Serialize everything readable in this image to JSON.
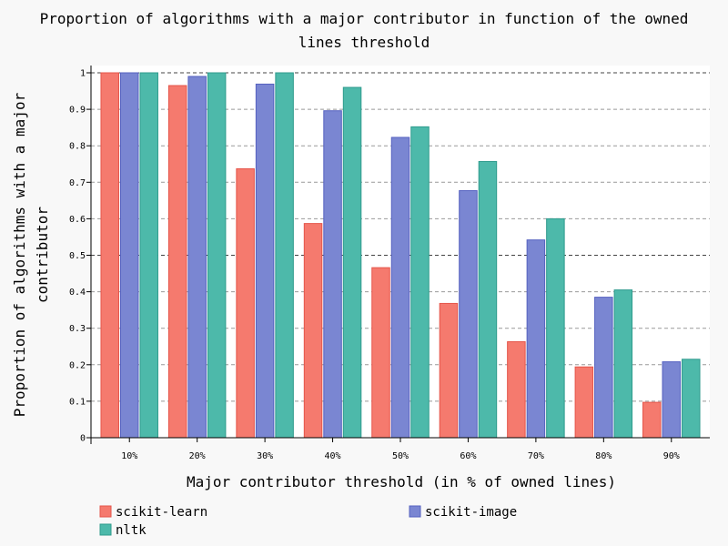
{
  "chart_data": {
    "type": "bar",
    "title_lines": [
      "Proportion of algorithms with a major contributor in function of the owned",
      "lines threshold"
    ],
    "xlabel": "Major contributor threshold (in % of owned lines)",
    "ylabel_lines": [
      "Proportion of algorithms with a major",
      "contributor"
    ],
    "categories": [
      "10%",
      "20%",
      "30%",
      "40%",
      "50%",
      "60%",
      "70%",
      "80%",
      "90%"
    ],
    "ylim": [
      0,
      1
    ],
    "yticks": [
      "0",
      "0.1",
      "0.2",
      "0.3",
      "0.4",
      "0.5",
      "0.6",
      "0.7",
      "0.8",
      "0.9",
      "1"
    ],
    "grid": "horizontal dashed",
    "legend_position": "bottom",
    "series": [
      {
        "name": "scikit-learn",
        "color": "#F57A6E",
        "stroke": "#E5554A",
        "values": [
          1.0,
          0.965,
          0.737,
          0.587,
          0.466,
          0.368,
          0.263,
          0.194,
          0.097
        ]
      },
      {
        "name": "scikit-image",
        "color": "#7A86D2",
        "stroke": "#5561C0",
        "values": [
          1.0,
          0.99,
          0.969,
          0.896,
          0.823,
          0.677,
          0.542,
          0.385,
          0.208
        ]
      },
      {
        "name": "nltk",
        "color": "#4DB9AA",
        "stroke": "#2F9B8D",
        "values": [
          1.0,
          1.0,
          1.0,
          0.96,
          0.852,
          0.757,
          0.6,
          0.405,
          0.215
        ]
      }
    ]
  }
}
